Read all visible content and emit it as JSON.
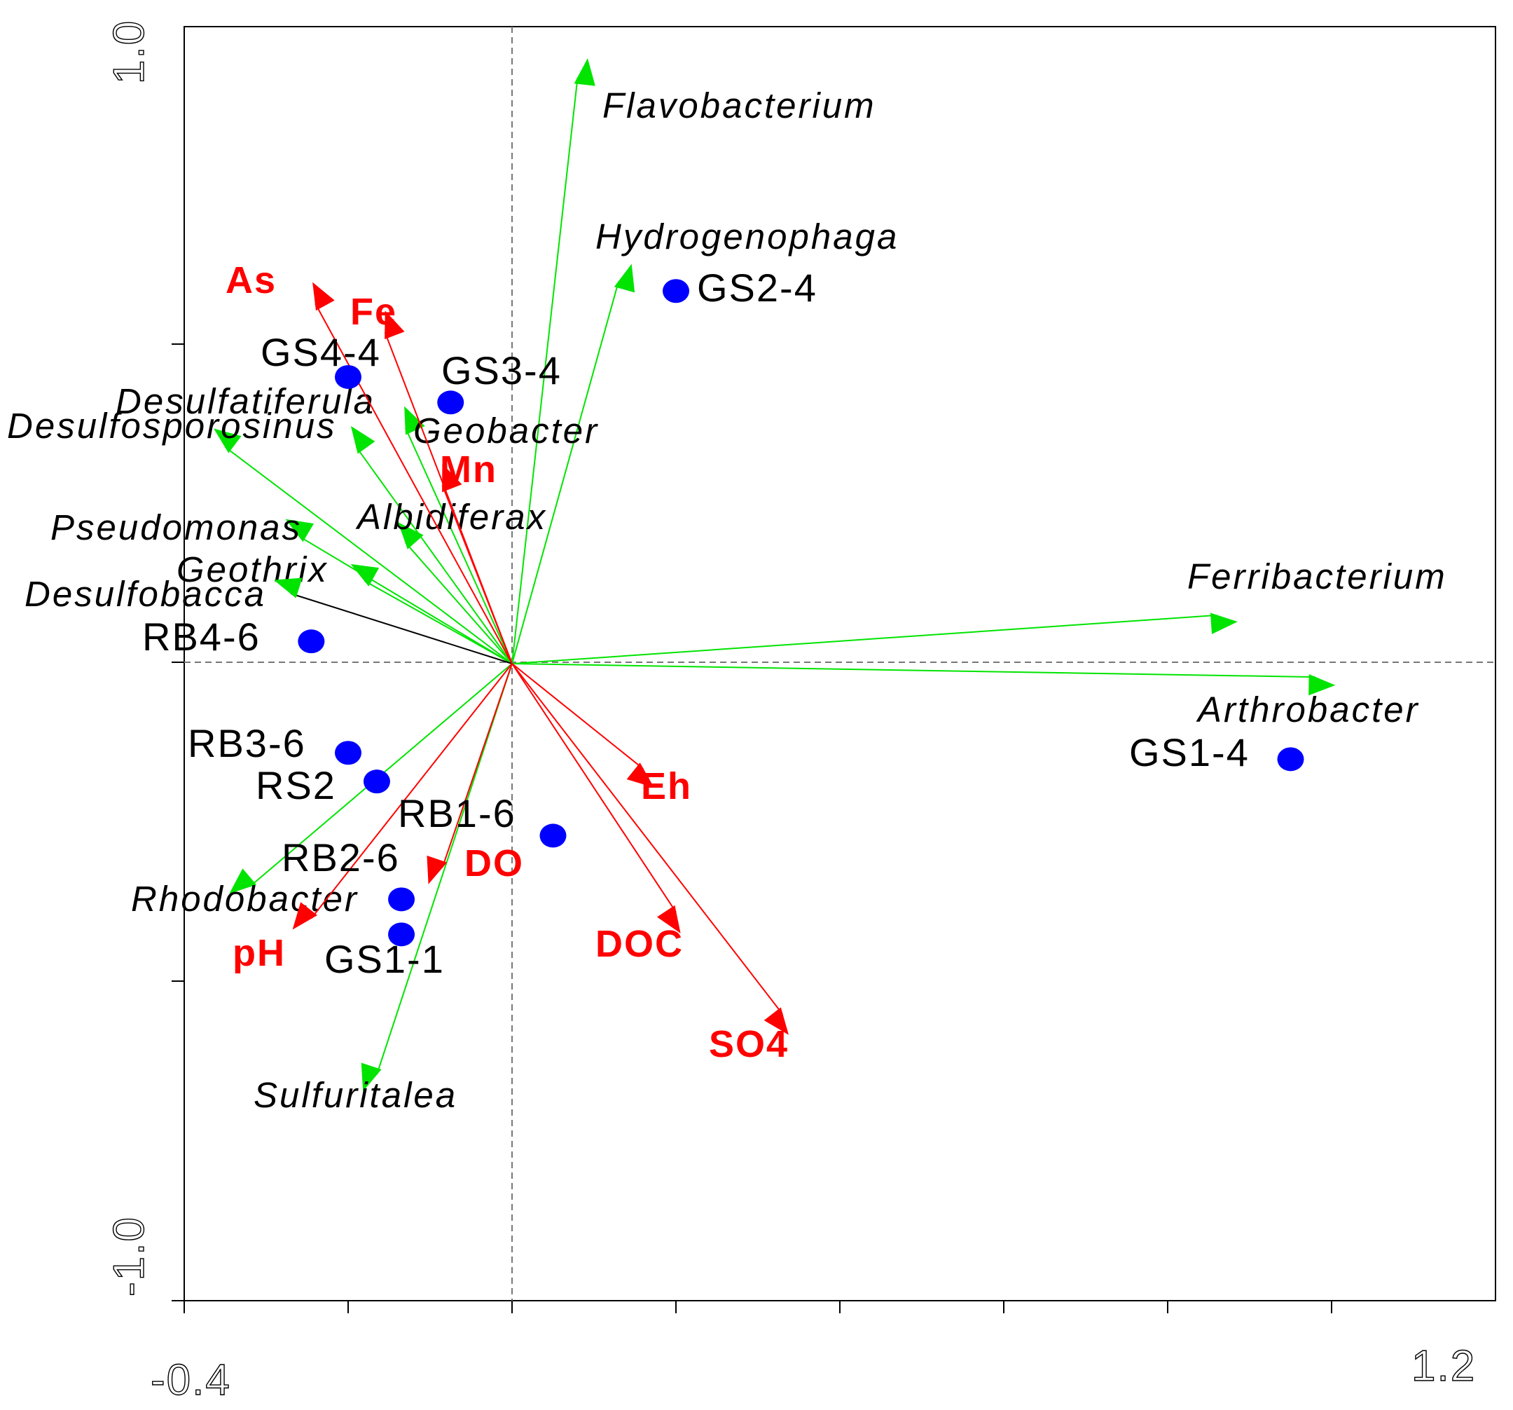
{
  "chart_data": {
    "type": "scatter",
    "title": "",
    "xlabel": "",
    "ylabel": "",
    "xlim": [
      -0.4,
      1.2
    ],
    "ylim": [
      -1.0,
      1.0
    ],
    "x_tick_labels": {
      "min": "-0.4",
      "max": "1.2"
    },
    "y_tick_labels": {
      "min": "-1.0",
      "max": "1.0"
    },
    "grid": false,
    "colors": {
      "species_arrow": "#00e400",
      "env_arrow": "#ff0000",
      "site_point": "#0000ff",
      "axis": "#000000",
      "zero_line": "#777777"
    },
    "species_arrows": [
      {
        "name": "Flavobacterium",
        "x": 0.08,
        "y": 0.92
      },
      {
        "name": "Hydrogenophaga",
        "x": 0.13,
        "y": 0.6
      },
      {
        "name": "Desulfatiferula",
        "x": -0.19,
        "y": 0.34
      },
      {
        "name": "Desulfosporosinus",
        "x": -0.35,
        "y": 0.34
      },
      {
        "name": "Geobacter",
        "x": -0.13,
        "y": 0.37
      },
      {
        "name": "Albidiferax",
        "x": -0.13,
        "y": 0.19
      },
      {
        "name": "Pseudomonas",
        "x": -0.26,
        "y": 0.2
      },
      {
        "name": "Geothrix",
        "x": -0.18,
        "y": 0.13
      },
      {
        "name": "Desulfobacca",
        "x": -0.27,
        "y": 0.11
      },
      {
        "name": "Ferribacterium",
        "x": 0.86,
        "y": 0.076
      },
      {
        "name": "Arthrobacter",
        "x": 0.98,
        "y": -0.021
      },
      {
        "name": "Rhodobacter",
        "x": -0.32,
        "y": -0.35
      },
      {
        "name": "Sulfuritalea",
        "x": -0.165,
        "y": -0.645
      }
    ],
    "env_arrows": [
      {
        "name": "As",
        "x": -0.24,
        "y": 0.565
      },
      {
        "name": "Fe",
        "x": -0.155,
        "y": 0.52
      },
      {
        "name": "Mn",
        "x": -0.085,
        "y": 0.28
      },
      {
        "name": "Eh",
        "x": 0.16,
        "y": -0.165
      },
      {
        "name": "DO",
        "x": -0.085,
        "y": -0.32
      },
      {
        "name": "DOC",
        "x": 0.2,
        "y": -0.39
      },
      {
        "name": "SO4",
        "x": 0.33,
        "y": -0.55
      },
      {
        "name": "pH",
        "x": -0.245,
        "y": -0.4
      }
    ],
    "sites": [
      {
        "name": "GS2-4",
        "x": 0.2,
        "y": 0.585
      },
      {
        "name": "GS4-4",
        "x": -0.2,
        "y": 0.45
      },
      {
        "name": "GS3-4",
        "x": -0.075,
        "y": 0.41
      },
      {
        "name": "RB4-6",
        "x": -0.245,
        "y": 0.035
      },
      {
        "name": "RB3-6",
        "x": -0.2,
        "y": -0.14
      },
      {
        "name": "RS2",
        "x": -0.165,
        "y": -0.185
      },
      {
        "name": "RB1-6",
        "x": 0.05,
        "y": -0.27
      },
      {
        "name": "RB2-6",
        "x": -0.135,
        "y": -0.37
      },
      {
        "name": "GS1-1",
        "x": -0.135,
        "y": -0.425
      },
      {
        "name": "GS1-4",
        "x": 0.95,
        "y": -0.15
      }
    ]
  }
}
